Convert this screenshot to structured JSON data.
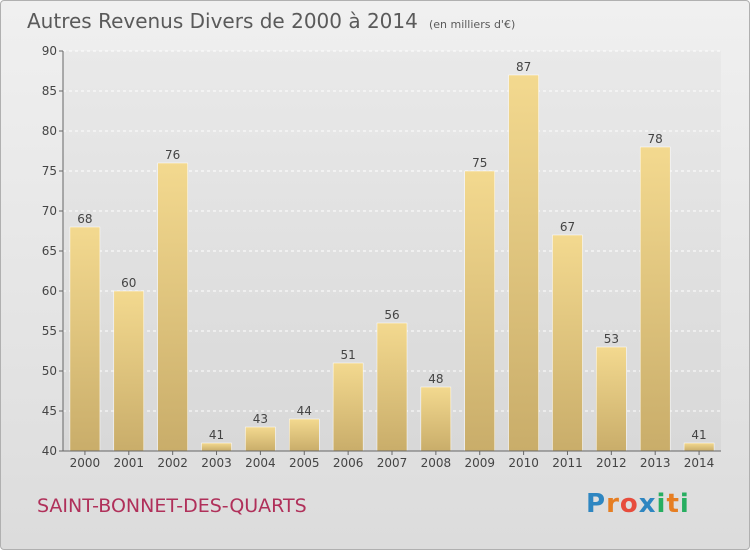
{
  "header": {
    "title": "Autres Revenus Divers de 2000 à 2014",
    "unit": "(en milliers d'€)"
  },
  "footer": {
    "commune": "SAINT-BONNET-DES-QUARTS",
    "brand_letters": [
      "P",
      "r",
      "o",
      "x",
      "i",
      "t",
      "i"
    ]
  },
  "colors": {
    "brand_letters": [
      "#2e86c1",
      "#e67e22",
      "#e74c3c",
      "#2e86c1",
      "#27ae60",
      "#e67e22",
      "#27ae60"
    ],
    "bar_top": "#f3d98f",
    "bar_bottom": "#c9ad6a",
    "grid": "#ffffff",
    "axis": "#666666"
  },
  "chart_data": {
    "type": "bar",
    "title": "Autres Revenus Divers de 2000 à 2014",
    "unit": "(en milliers d'€)",
    "categories": [
      "2000",
      "2001",
      "2002",
      "2003",
      "2004",
      "2005",
      "2006",
      "2007",
      "2008",
      "2009",
      "2010",
      "2011",
      "2012",
      "2013",
      "2014"
    ],
    "values": [
      68,
      60,
      76,
      41,
      43,
      44,
      51,
      56,
      48,
      75,
      87,
      67,
      53,
      78,
      41
    ],
    "ylim": [
      40,
      90
    ],
    "yticks": [
      40,
      45,
      50,
      55,
      60,
      65,
      70,
      75,
      80,
      85,
      90
    ],
    "grid": true,
    "show_data_labels": true
  }
}
